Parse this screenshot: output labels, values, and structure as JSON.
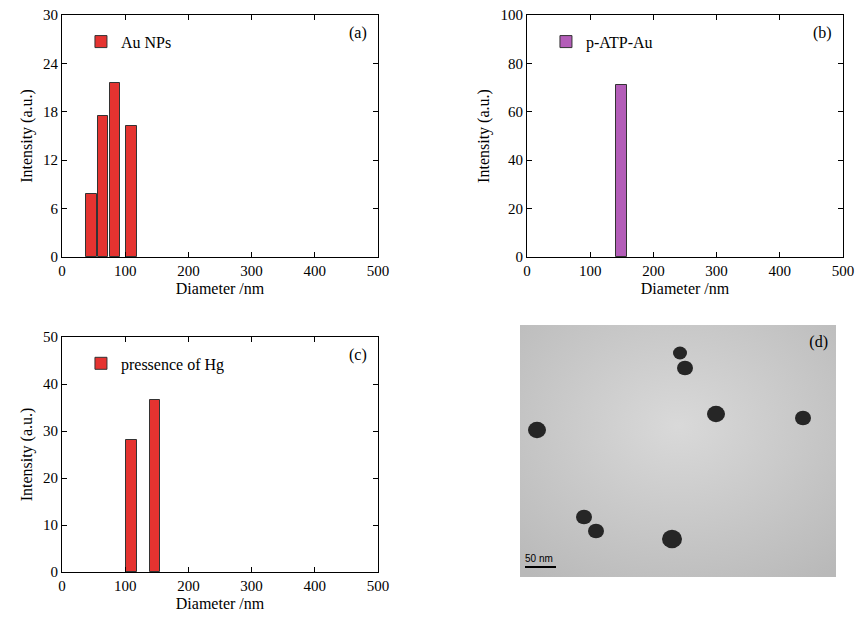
{
  "chart_data": [
    {
      "type": "bar",
      "panel": "(a)",
      "x_label": "Diameter /nm",
      "y_label": "Intensity (a.u.)",
      "x": [
        47,
        65,
        84,
        110
      ],
      "series": [
        {
          "name": "Au NPs",
          "color": "#e53330",
          "values": [
            7.8,
            17.5,
            21.6,
            16.2
          ]
        }
      ],
      "xlim": [
        0,
        500
      ],
      "xticks": [
        0,
        100,
        200,
        300,
        400,
        500
      ],
      "ylim": [
        0,
        30
      ],
      "yticks": [
        0,
        6,
        12,
        18,
        24,
        30
      ],
      "grid": false,
      "legend": "upper left"
    },
    {
      "type": "bar",
      "panel": "(b)",
      "x_label": "Diameter /nm",
      "y_label": "Intensity (a.u.)",
      "x": [
        150
      ],
      "series": [
        {
          "name": "p-ATP-Au",
          "color": "#b35db8",
          "values": [
            71
          ]
        }
      ],
      "xlim": [
        0,
        500
      ],
      "xticks": [
        0,
        100,
        200,
        300,
        400,
        500
      ],
      "ylim": [
        0,
        100
      ],
      "yticks": [
        0,
        20,
        40,
        60,
        80,
        100
      ],
      "grid": false,
      "legend": "upper left"
    },
    {
      "type": "bar",
      "panel": "(c)",
      "x_label": "Diameter /nm",
      "y_label": "Intensity (a.u.)",
      "x": [
        110,
        147
      ],
      "series": [
        {
          "name": "pressence of Hg",
          "color": "#e53330",
          "values": [
            28,
            36.5
          ]
        }
      ],
      "xlim": [
        0,
        500
      ],
      "xticks": [
        0,
        100,
        200,
        300,
        400,
        500
      ],
      "ylim": [
        0,
        50
      ],
      "yticks": [
        0,
        10,
        20,
        30,
        40,
        50
      ],
      "grid": false,
      "legend": "upper left"
    }
  ],
  "image": {
    "panel": "(d)",
    "scale_bar": "50 nm"
  }
}
